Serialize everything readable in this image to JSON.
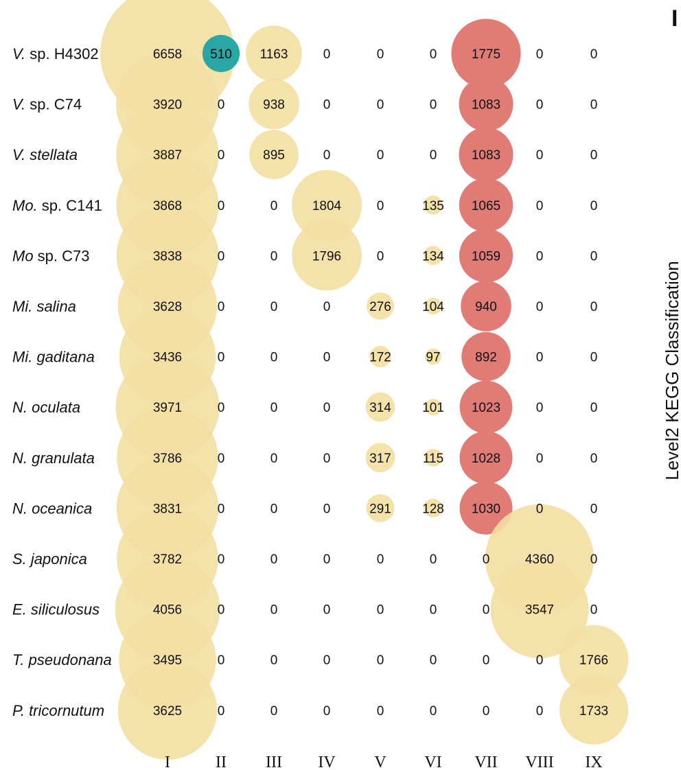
{
  "chart_data": {
    "type": "bubble-matrix",
    "panel_letter": "I",
    "side_label": "Level2 KEGG Classification",
    "categories": [
      "I",
      "II",
      "III",
      "IV",
      "V",
      "VI",
      "VII",
      "VIII",
      "IX"
    ],
    "rows": [
      {
        "name_italic": "V.",
        "name_rest": " sp. H4302"
      },
      {
        "name_italic": "V.",
        "name_rest": " sp. C74"
      },
      {
        "name_italic": "V. stellata",
        "name_rest": ""
      },
      {
        "name_italic": "Mo.",
        "name_rest": " sp. C141"
      },
      {
        "name_italic": "Mo",
        "name_rest": " sp.  C73"
      },
      {
        "name_italic": "Mi. salina",
        "name_rest": ""
      },
      {
        "name_italic": "Mi. gaditana",
        "name_rest": ""
      },
      {
        "name_italic": "N. oculata",
        "name_rest": ""
      },
      {
        "name_italic": "N. granulata",
        "name_rest": ""
      },
      {
        "name_italic": "N. oceanica",
        "name_rest": ""
      },
      {
        "name_italic": "S. japonica",
        "name_rest": ""
      },
      {
        "name_italic": "E. siliculosus",
        "name_rest": ""
      },
      {
        "name_italic": "T. pseudonana",
        "name_rest": ""
      },
      {
        "name_italic": "P. tricornutum",
        "name_rest": ""
      }
    ],
    "values": [
      [
        6658,
        510,
        1163,
        0,
        0,
        0,
        1775,
        0,
        0
      ],
      [
        3920,
        0,
        938,
        0,
        0,
        0,
        1083,
        0,
        0
      ],
      [
        3887,
        0,
        895,
        0,
        0,
        0,
        1083,
        0,
        0
      ],
      [
        3868,
        0,
        0,
        1804,
        0,
        135,
        1065,
        0,
        0
      ],
      [
        3838,
        0,
        0,
        1796,
        0,
        134,
        1059,
        0,
        0
      ],
      [
        3628,
        0,
        0,
        0,
        276,
        104,
        940,
        0,
        0
      ],
      [
        3436,
        0,
        0,
        0,
        172,
        97,
        892,
        0,
        0
      ],
      [
        3971,
        0,
        0,
        0,
        314,
        101,
        1023,
        0,
        0
      ],
      [
        3786,
        0,
        0,
        0,
        317,
        115,
        1028,
        0,
        0
      ],
      [
        3831,
        0,
        0,
        0,
        291,
        128,
        1030,
        0,
        0
      ],
      [
        3782,
        0,
        0,
        0,
        0,
        0,
        0,
        4360,
        0
      ],
      [
        4056,
        0,
        0,
        0,
        0,
        0,
        0,
        3547,
        0
      ],
      [
        3495,
        0,
        0,
        0,
        0,
        0,
        0,
        0,
        1766
      ],
      [
        3625,
        0,
        0,
        0,
        0,
        0,
        0,
        0,
        1733
      ]
    ],
    "colors": {
      "default": "#f3dfa2",
      "II": "#2aa7a5",
      "VII": "#e07b76"
    }
  }
}
